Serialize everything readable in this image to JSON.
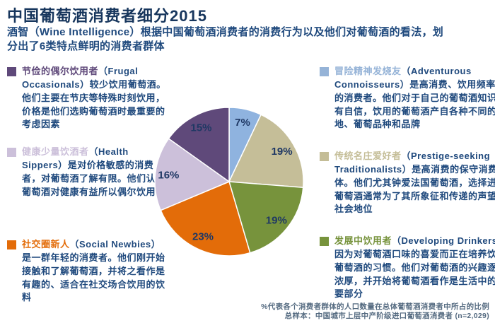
{
  "title": "中国葡萄酒消费者细分2015",
  "subtitle": "酒智（Wine Intelligence）根据中国葡萄酒消费者的消费行为以及他们对葡萄酒的看法，划分出了6类特点鲜明的消费者群体",
  "colors": {
    "title_text": "#17365D",
    "body_text": "#1F497D",
    "pie_label_text": "#1F3864",
    "footer_text": "#546A80"
  },
  "segments": [
    {
      "id": "frugal-occasionals",
      "name_cn": "节俭的偶尔饮用者",
      "name_en": "（Frugal Occasionals）",
      "description": "较少饮用葡萄酒。他们主要在节庆等特殊时刻饮用，价格是他们选购葡萄酒时最重要的考虑因素",
      "color": "#5F497A",
      "value_pct": "15%"
    },
    {
      "id": "health-sippers",
      "name_cn": "健康少量饮酒者",
      "name_en": "（Health Sippers）",
      "description": "是对价格敏感的消费者，对葡萄酒了解有限。他们认为葡萄酒对健康有益所以偶尔饮用",
      "color": "#CCC0DA",
      "value_pct": "16%"
    },
    {
      "id": "social-newbies",
      "name_cn": "社交圈新人",
      "name_en": "（Social Newbies）",
      "description": "是一群年轻的消费者。他们刚开始接触和了解葡萄酒，并将之看作是有趣的、适合在社交场合饮用的饮料",
      "color": "#E36C09",
      "value_pct": "23%"
    },
    {
      "id": "adventurous-connoisseurs",
      "name_cn": "冒险精神发烧友",
      "name_en": "（Adventurous Connoisseurs）",
      "description": "是高消费、饮用频率高的消费者。他们对于自己的葡萄酒知识很有自信，饮用的葡萄酒产自各种不同的产地、葡萄品种和品牌",
      "color": "#95B3D7",
      "value_pct": "7%"
    },
    {
      "id": "prestige-seeking-traditionalists",
      "name_cn": "传统名庄爱好者",
      "name_en": "（Prestige-seeking Traditionalists）",
      "description": "是高消费的保守消费群体。他们尤其钟爱法国葡萄酒，选择进口葡萄酒通常为了其所象征和传递的声望和社会地位",
      "color": "#C4BD97",
      "value_pct": "19%"
    },
    {
      "id": "developing-drinkers",
      "name_cn": "发展中饮用者",
      "name_en": "（Developing Drinkers）",
      "description": "因为对葡萄酒口味的喜爱而正在培养饮用葡萄酒的习惯。他们对葡萄酒的兴趣逐渐浓厚，并开始将葡萄酒看作是生活中的重要部分",
      "color": "#77933C",
      "value_pct": "19%"
    }
  ],
  "footer": {
    "line1": "%代表各个消费者群体的人口数量在总体葡萄酒消费者中所占的比例",
    "line2": "总样本：中国城市上层中产阶级进口葡萄酒消费者 (n=2,029)"
  },
  "chart_data": {
    "type": "pie",
    "title": "中国葡萄酒消费者细分2015",
    "categories": [
      "冒险精神发烧友 (Adventurous Connoisseurs)",
      "传统名庄爱好者 (Prestige-seeking Traditionalists)",
      "发展中饮用者 (Developing Drinkers)",
      "社交圈新人 (Social Newbies)",
      "健康少量饮酒者 (Health Sippers)",
      "节俭的偶尔饮用者 (Frugal Occasionals)"
    ],
    "values": [
      7,
      19,
      19,
      23,
      16,
      15
    ],
    "labels": [
      "7%",
      "19%",
      "19%",
      "23%",
      "16%",
      "15%"
    ],
    "colors": [
      "#8FB3DF",
      "#C5BE98",
      "#77933C",
      "#E36C09",
      "#CCC0DA",
      "#5F497A"
    ],
    "slice_ids": [
      "adventurous-connoisseurs",
      "prestige-seeking-traditionalists",
      "developing-drinkers",
      "social-newbies",
      "health-sippers",
      "frugal-occasionals"
    ],
    "start_angle_deg": -90,
    "direction": "clockwise",
    "legend": "none",
    "label_radius_frac": 0.82
  }
}
